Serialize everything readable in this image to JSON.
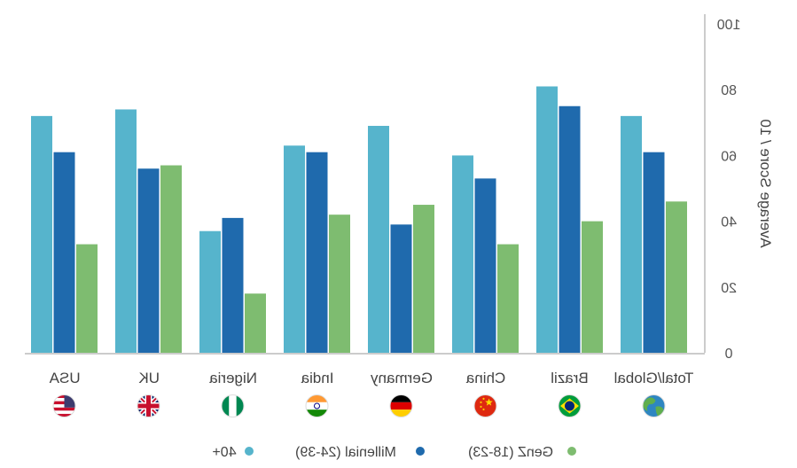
{
  "chart_data": {
    "type": "bar",
    "mirrored": true,
    "categories": [
      "USA",
      "UK",
      "Nigeria",
      "India",
      "Germany",
      "China",
      "Brazil",
      "Total/Global"
    ],
    "category_icons": [
      "usa-flag-icon",
      "uk-flag-icon",
      "nigeria-flag-icon",
      "india-flag-icon",
      "germany-flag-icon",
      "china-flag-icon",
      "brazil-flag-icon",
      "globe-icon"
    ],
    "series": [
      {
        "name": "40+",
        "color": "#56b4cc",
        "values": [
          72,
          74,
          37,
          63,
          69,
          60,
          81,
          72
        ]
      },
      {
        "name": "Millenial (24-39)",
        "color": "#1f6aad",
        "values": [
          61,
          56,
          41,
          61,
          39,
          53,
          75,
          61
        ]
      },
      {
        "name": "GenZ (18-23)",
        "color": "#7ebc70",
        "values": [
          33,
          57,
          18,
          42,
          45,
          33,
          40,
          46
        ]
      }
    ],
    "ylabel": "Average Score / 10",
    "ylim": [
      0,
      100
    ],
    "yticks": [
      "0",
      "20",
      "40",
      "60",
      "80",
      "100"
    ],
    "axis_position": "right",
    "legend_position": "bottom-center",
    "grid": false
  }
}
